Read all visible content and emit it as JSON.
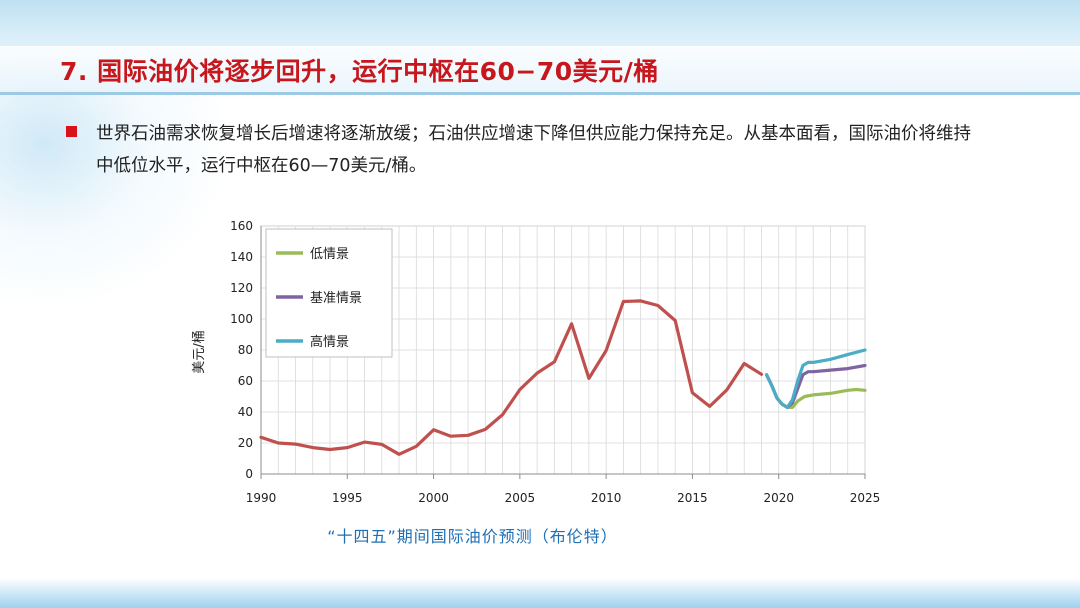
{
  "slide": {
    "title": "7. 国际油价将逐步回升，运行中枢在60−70美元/桶",
    "bullet_text": "世界石油需求恢复增长后增速将逐渐放缓；石油供应增速下降但供应能力保持充足。从基本面看，国际油价将维持中低位水平，运行中枢在60—70美元/桶。",
    "caption": "“十四五”期间国际油价预测（布伦特）",
    "colors": {
      "title": "#c8161d",
      "bullet": "#d9131b",
      "caption": "#1f6fb5"
    }
  },
  "chart_data": {
    "type": "line",
    "title": "",
    "xlabel": "",
    "ylabel": "美元/桶",
    "xlim": [
      1990,
      2025
    ],
    "ylim": [
      0,
      160
    ],
    "x_ticks": [
      1990,
      1995,
      2000,
      2005,
      2010,
      2015,
      2020,
      2025
    ],
    "y_ticks": [
      0,
      20,
      40,
      60,
      80,
      100,
      120,
      140,
      160
    ],
    "grid": true,
    "legend_position": "top-left",
    "history": {
      "color": "#c0504d",
      "x": [
        1990,
        1991,
        1992,
        1993,
        1994,
        1995,
        1996,
        1997,
        1998,
        1999,
        2000,
        2001,
        2002,
        2003,
        2004,
        2005,
        2006,
        2007,
        2008,
        2009,
        2010,
        2011,
        2012,
        2013,
        2014,
        2015,
        2016,
        2017,
        2018,
        2019
      ],
      "y": [
        23.7,
        20,
        19.3,
        17,
        15.8,
        17,
        20.6,
        19.1,
        12.7,
        17.9,
        28.5,
        24.4,
        25,
        28.8,
        38.3,
        54.5,
        65.1,
        72.4,
        96.9,
        61.7,
        79.6,
        111.3,
        111.7,
        108.7,
        99,
        52.4,
        43.6,
        54.3,
        71.3,
        64.3
      ]
    },
    "series": [
      {
        "name": "低情景",
        "color": "#9bbb59",
        "x": [
          2019.3,
          2019.6,
          2019.9,
          2020.2,
          2020.5,
          2020.8,
          2021.1,
          2021.5,
          2022,
          2023,
          2024,
          2024.5,
          2025
        ],
        "y": [
          64,
          57,
          49,
          45,
          43,
          43,
          47,
          50,
          51,
          52,
          54,
          54.5,
          54
        ]
      },
      {
        "name": "基准情景",
        "color": "#8064a2",
        "x": [
          2019.3,
          2019.6,
          2019.9,
          2020.2,
          2020.5,
          2020.8,
          2021.1,
          2021.4,
          2021.7,
          2022,
          2023,
          2024,
          2025
        ],
        "y": [
          64,
          57,
          49,
          45,
          43,
          46,
          55,
          64,
          66,
          66,
          67,
          68,
          70
        ]
      },
      {
        "name": "高情景",
        "color": "#4bacc6",
        "x": [
          2019.3,
          2019.6,
          2019.9,
          2020.2,
          2020.5,
          2020.8,
          2021.1,
          2021.4,
          2021.7,
          2022,
          2023,
          2024,
          2025
        ],
        "y": [
          64,
          57,
          49,
          45,
          43,
          48,
          60,
          70,
          72,
          72,
          74,
          77,
          80
        ]
      }
    ]
  }
}
